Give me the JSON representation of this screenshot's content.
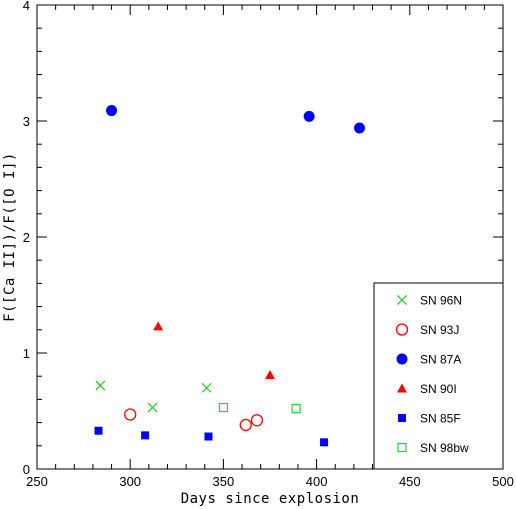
{
  "chart_data": {
    "type": "scatter",
    "xlabel": "Days since explosion",
    "ylabel": "F([Ca II])/F([O I])",
    "xlim": [
      250,
      500
    ],
    "ylim": [
      0,
      4
    ],
    "x_ticks": [
      250,
      300,
      350,
      400,
      450,
      500
    ],
    "y_ticks": [
      0,
      1,
      2,
      3,
      4
    ],
    "x_tick_labels": [
      "250",
      "300",
      "350",
      "400",
      "450",
      "500"
    ],
    "y_tick_labels": [
      "0",
      "1",
      "2",
      "3",
      "4"
    ],
    "legend_position": "bottom-right",
    "grid": false,
    "series": [
      {
        "name": "SN 96N",
        "marker": "cross",
        "color": "#33cc33",
        "points": [
          [
            284,
            0.72
          ],
          [
            312,
            0.53
          ],
          [
            341,
            0.7
          ]
        ]
      },
      {
        "name": "SN 93J",
        "marker": "circle-open",
        "color": "#ff0000",
        "points": [
          [
            300,
            0.47
          ],
          [
            362,
            0.38
          ],
          [
            368,
            0.42
          ]
        ]
      },
      {
        "name": "SN 87A",
        "marker": "circle-filled",
        "color": "#0000ff",
        "points": [
          [
            290,
            3.09
          ],
          [
            396,
            3.04
          ],
          [
            423,
            2.94
          ]
        ]
      },
      {
        "name": "SN 90I",
        "marker": "triangle-filled",
        "color": "#ff0000",
        "points": [
          [
            315,
            1.23
          ],
          [
            375,
            0.81
          ]
        ]
      },
      {
        "name": "SN 85F",
        "marker": "square-filled",
        "color": "#0000ff",
        "points": [
          [
            283,
            0.33
          ],
          [
            308,
            0.29
          ],
          [
            342,
            0.28
          ],
          [
            404,
            0.23
          ]
        ]
      },
      {
        "name": "SN 98bw",
        "marker": "square-open",
        "color": "#33cc33",
        "points": [
          [
            350,
            0.53
          ],
          [
            389,
            0.52
          ]
        ]
      }
    ]
  }
}
